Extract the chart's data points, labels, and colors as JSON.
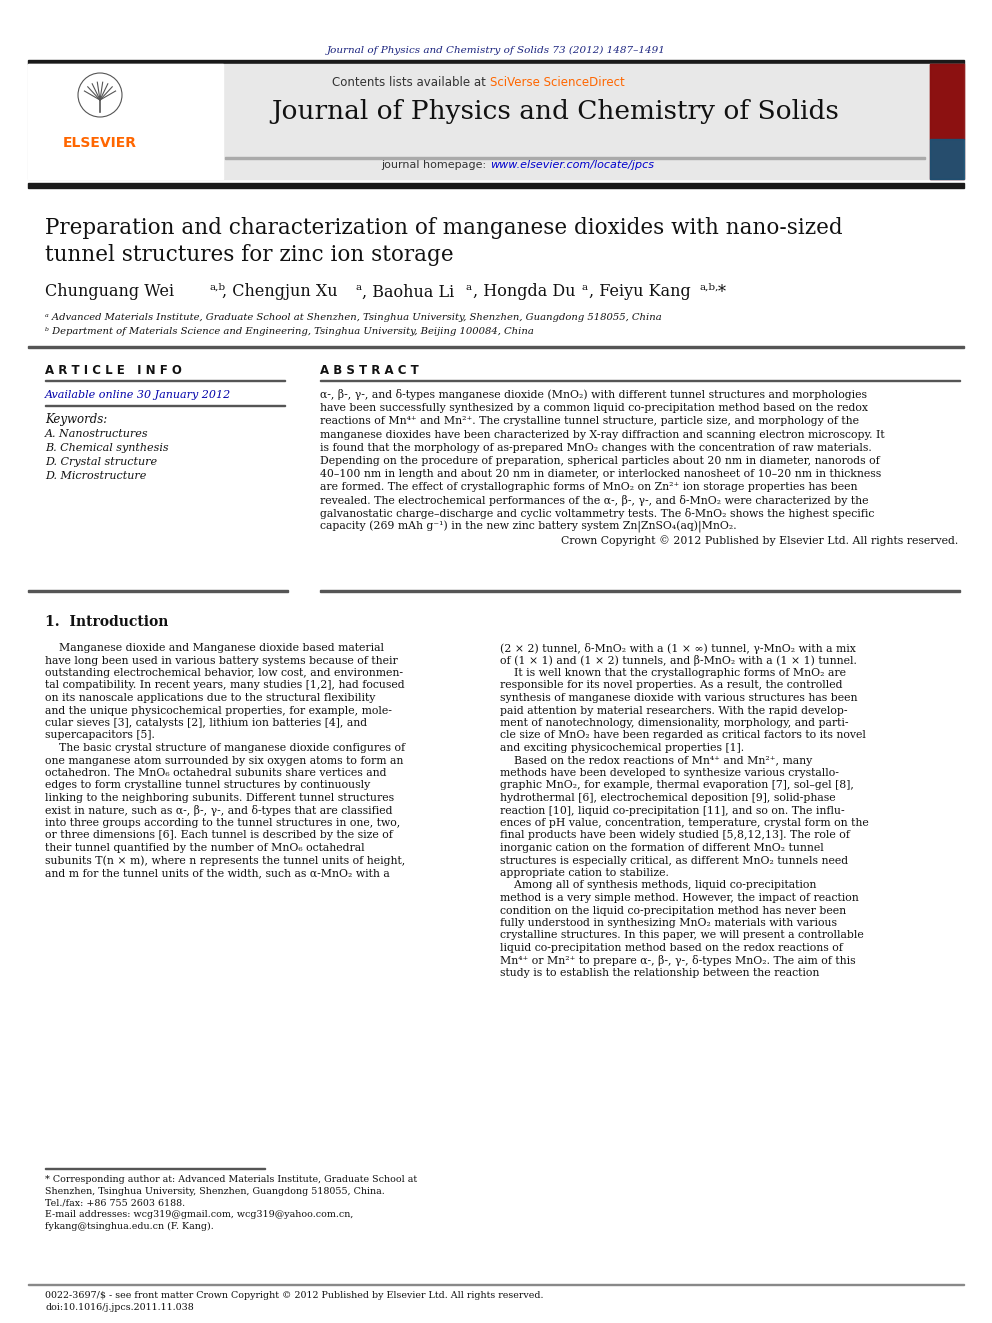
{
  "page_bg": "#ffffff",
  "top_journal_ref": "Journal of Physics and Chemistry of Solids 73 (2012) 1487–1491",
  "top_journal_ref_color": "#1a237e",
  "header_bg": "#e8e8e8",
  "header_contents_text": "Contents lists available at ",
  "header_sciverse": "SciVerse ScienceDirect",
  "header_sciverse_color": "#ff6600",
  "journal_title": "Journal of Physics and Chemistry of Solids",
  "journal_homepage_text": "journal homepage: ",
  "journal_url": "www.elsevier.com/locate/jpcs",
  "journal_url_color": "#0000cc",
  "dark_bar_color": "#1a1a1a",
  "elsevier_color": "#ff6600",
  "article_title_line1": "Preparation and characterization of manganese dioxides with nano-sized",
  "article_title_line2": "tunnel structures for zinc ion storage",
  "affil_a": "ᵃ Advanced Materials Institute, Graduate School at Shenzhen, Tsinghua University, Shenzhen, Guangdong 518055, China",
  "affil_b": "ᵇ Department of Materials Science and Engineering, Tsinghua University, Beijing 100084, China",
  "article_info_header": "A R T I C L E   I N F O",
  "available_online": "Available online 30 January 2012",
  "keywords_header": "Keywords:",
  "keywords": [
    "A. Nanostructures",
    "B. Chemical synthesis",
    "D. Crystal structure",
    "D. Microstructure"
  ],
  "abstract_header": "A B S T R A C T",
  "abstract_text": "α-, β-, γ-, and δ-types manganese dioxide (MnO₂) with different tunnel structures and morphologies\nhave been successfully synthesized by a common liquid co-precipitation method based on the redox\nreactions of Mn⁴⁺ and Mn²⁺. The crystalline tunnel structure, particle size, and morphology of the\nmanganese dioxides have been characterized by X-ray diffraction and scanning electron microscopy. It\nis found that the morphology of as-prepared MnO₂ changes with the concentration of raw materials.\nDepending on the procedure of preparation, spherical particles about 20 nm in diameter, nanorods of\n40–100 nm in length and about 20 nm in diameter, or interlocked nanosheet of 10–20 nm in thickness\nare formed. The effect of crystallographic forms of MnO₂ on Zn²⁺ ion storage properties has been\nrevealed. The electrochemical performances of the α-, β-, γ-, and δ-MnO₂ were characterized by the\ngalvanostatic charge–discharge and cyclic voltammetry tests. The δ-MnO₂ shows the highest specific\ncapacity (269 mAh g⁻¹) in the new zinc battery system Zn|ZnSO₄(aq)|MnO₂.",
  "abstract_copyright": "    Crown Copyright © 2012 Published by Elsevier Ltd. All rights reserved.",
  "section1_title": "1.  Introduction",
  "intro_col1": [
    "    Manganese dioxide and Manganese dioxide based material",
    "have long been used in various battery systems because of their",
    "outstanding electrochemical behavior, low cost, and environmen-",
    "tal compatibility. In recent years, many studies [1,2], had focused",
    "on its nanoscale applications due to the structural flexibility",
    "and the unique physicochemical properties, for example, mole-",
    "cular sieves [3], catalysts [2], lithium ion batteries [4], and",
    "supercapacitors [5].",
    "    The basic crystal structure of manganese dioxide configures of",
    "one manganese atom surrounded by six oxygen atoms to form an",
    "octahedron. The MnO₆ octahedral subunits share vertices and",
    "edges to form crystalline tunnel structures by continuously",
    "linking to the neighboring subunits. Different tunnel structures",
    "exist in nature, such as α-, β-, γ-, and δ-types that are classified",
    "into three groups according to the tunnel structures in one, two,",
    "or three dimensions [6]. Each tunnel is described by the size of",
    "their tunnel quantified by the number of MnO₆ octahedral",
    "subunits T(n × m), where n represents the tunnel units of height,",
    "and m for the tunnel units of the width, such as α-MnO₂ with a"
  ],
  "intro_col2": [
    "(2 × 2) tunnel, δ-MnO₂ with a (1 × ∞) tunnel, γ-MnO₂ with a mix",
    "of (1 × 1) and (1 × 2) tunnels, and β-MnO₂ with a (1 × 1) tunnel.",
    "    It is well known that the crystallographic forms of MnO₂ are",
    "responsible for its novel properties. As a result, the controlled",
    "synthesis of manganese dioxide with various structures has been",
    "paid attention by material researchers. With the rapid develop-",
    "ment of nanotechnology, dimensionality, morphology, and parti-",
    "cle size of MnO₂ have been regarded as critical factors to its novel",
    "and exciting physicochemical properties [1].",
    "    Based on the redox reactions of Mn⁴⁺ and Mn²⁺, many",
    "methods have been developed to synthesize various crystallo-",
    "graphic MnO₂, for example, thermal evaporation [7], sol–gel [8],",
    "hydrothermal [6], electrochemical deposition [9], solid-phase",
    "reaction [10], liquid co-precipitation [11], and so on. The influ-",
    "ences of pH value, concentration, temperature, crystal form on the",
    "final products have been widely studied [5,8,12,13]. The role of",
    "inorganic cation on the formation of different MnO₂ tunnel",
    "structures is especially critical, as different MnO₂ tunnels need",
    "appropriate cation to stabilize.",
    "    Among all of synthesis methods, liquid co-precipitation",
    "method is a very simple method. However, the impact of reaction",
    "condition on the liquid co-precipitation method has never been",
    "fully understood in synthesizing MnO₂ materials with various",
    "crystalline structures. In this paper, we will present a controllable",
    "liquid co-precipitation method based on the redox reactions of",
    "Mn⁴⁺ or Mn²⁺ to prepare α-, β-, γ-, δ-types MnO₂. The aim of this",
    "study is to establish the relationship between the reaction"
  ],
  "footnote_lines": [
    "* Corresponding author at: Advanced Materials Institute, Graduate School at",
    "Shenzhen, Tsinghua University, Shenzhen, Guangdong 518055, China.",
    "Tel./fax: +86 755 2603 6188.",
    "E-mail addresses: wcg319@gmail.com, wcg319@yahoo.com.cn,",
    "fykang@tsinghua.edu.cn (F. Kang)."
  ],
  "footer_line1": "0022-3697/$ - see front matter Crown Copyright © 2012 Published by Elsevier Ltd. All rights reserved.",
  "footer_line2": "doi:10.1016/j.jpcs.2011.11.038"
}
